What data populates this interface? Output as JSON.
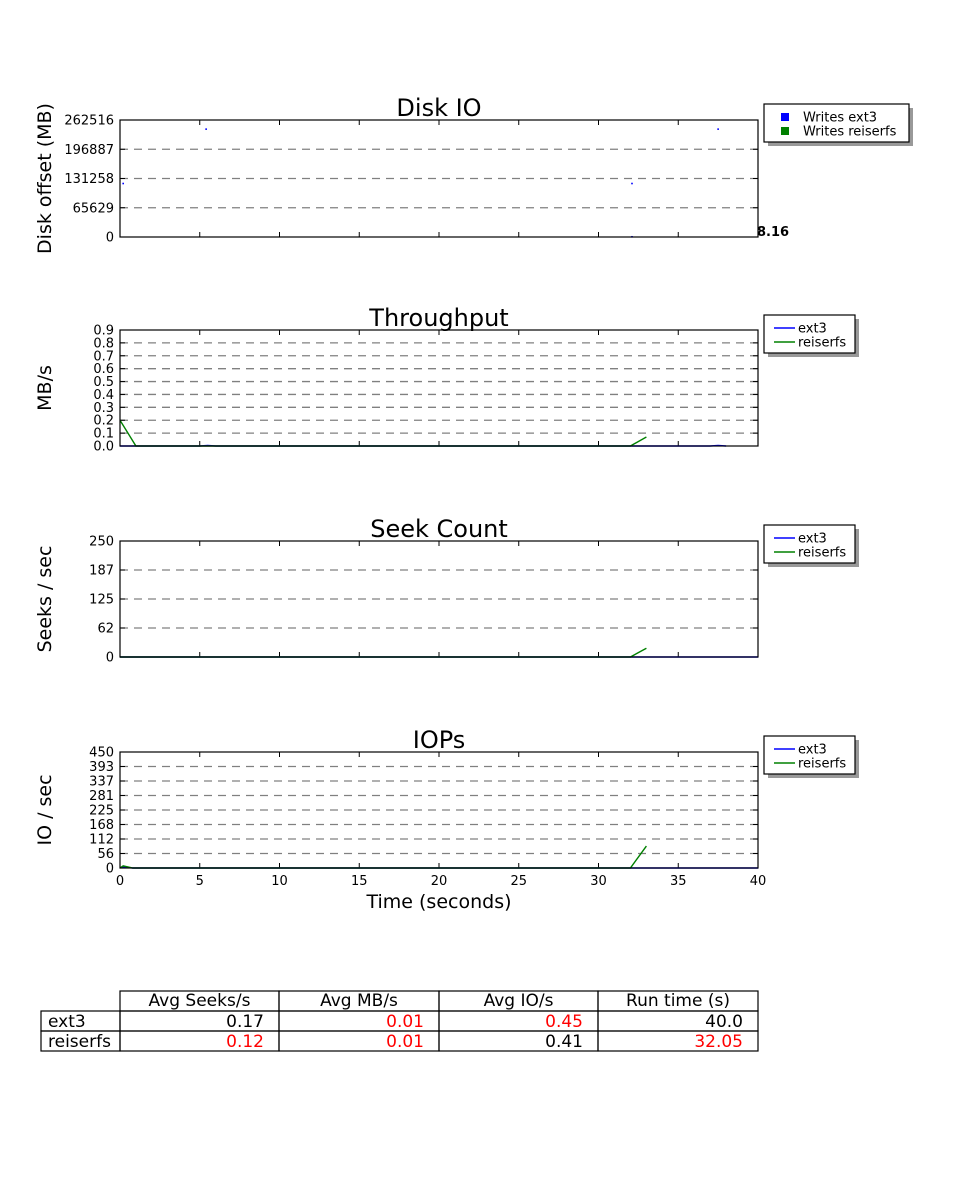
{
  "chart_data": [
    {
      "type": "scatter",
      "title": "Disk IO",
      "ylabel": "Disk offset (MB)",
      "xlabel": "",
      "xlim": [
        0,
        40
      ],
      "ylim": [
        0,
        262516
      ],
      "yticks": [
        "0",
        "65629",
        "131258",
        "196887",
        "262516"
      ],
      "grid": "horizontal dashed",
      "legend": "right of plot, top",
      "annotation": "8.16",
      "series": [
        {
          "name": "Writes ext3",
          "color": "#0000ff",
          "points": [
            [
              0.2,
              120000
            ],
            [
              5.4,
              242000
            ],
            [
              32.1,
              120000
            ],
            [
              37.5,
              242000
            ],
            [
              32.1,
              500
            ]
          ]
        },
        {
          "name": "Writes reiserfs",
          "color": "#008000",
          "points": []
        }
      ]
    },
    {
      "type": "line",
      "title": "Throughput",
      "ylabel": "MB/s",
      "xlabel": "",
      "xlim": [
        0,
        40
      ],
      "ylim": [
        0,
        0.9
      ],
      "yticks": [
        "0.0",
        "0.1",
        "0.2",
        "0.3",
        "0.4",
        "0.5",
        "0.6",
        "0.7",
        "0.8",
        "0.9"
      ],
      "grid": "horizontal dashed",
      "legend": "right of plot, top",
      "series": [
        {
          "name": "ext3",
          "color": "#0000ff",
          "x": [
            0,
            5,
            5.5,
            6,
            37,
            37.5,
            38
          ],
          "y": [
            0,
            0,
            0.005,
            0,
            0,
            0.005,
            0
          ]
        },
        {
          "name": "reiserfs",
          "color": "#008000",
          "x": [
            0,
            1,
            32,
            33
          ],
          "y": [
            0.2,
            0,
            0,
            0.07
          ]
        }
      ]
    },
    {
      "type": "line",
      "title": "Seek Count",
      "ylabel": "Seeks / sec",
      "xlabel": "",
      "xlim": [
        0,
        40
      ],
      "ylim": [
        0,
        250
      ],
      "yticks": [
        "0",
        "62",
        "125",
        "187",
        "250"
      ],
      "grid": "horizontal dashed",
      "legend": "right of plot, top",
      "series": [
        {
          "name": "ext3",
          "color": "#0000ff",
          "x": [
            0,
            40
          ],
          "y": [
            0,
            0
          ]
        },
        {
          "name": "reiserfs",
          "color": "#008000",
          "x": [
            0,
            32,
            33
          ],
          "y": [
            0,
            0,
            19
          ]
        }
      ]
    },
    {
      "type": "line",
      "title": "IOPs",
      "ylabel": "IO / sec",
      "xlabel": "Time (seconds)",
      "xlim": [
        0,
        40
      ],
      "ylim": [
        0,
        450
      ],
      "yticks": [
        "0",
        "56",
        "112",
        "168",
        "225",
        "281",
        "337",
        "393",
        "450"
      ],
      "xticks": [
        "0",
        "5",
        "10",
        "15",
        "20",
        "25",
        "30",
        "35",
        "40"
      ],
      "grid": "horizontal dashed",
      "legend": "right of plot, top",
      "series": [
        {
          "name": "ext3",
          "color": "#0000ff",
          "x": [
            0,
            0.2,
            0.8,
            40
          ],
          "y": [
            0,
            4,
            0,
            0
          ]
        },
        {
          "name": "reiserfs",
          "color": "#008000",
          "x": [
            0,
            0.2,
            0.8,
            32,
            33
          ],
          "y": [
            0,
            8,
            0,
            0,
            85
          ]
        }
      ]
    },
    {
      "type": "table",
      "columns": [
        "Avg Seeks/s",
        "Avg MB/s",
        "Avg IO/s",
        "Run time (s)"
      ],
      "rows": [
        {
          "label": "ext3",
          "values": [
            "0.17",
            "0.01",
            "0.45",
            "40.0"
          ],
          "highlight": [
            false,
            true,
            true,
            false
          ]
        },
        {
          "label": "reiserfs",
          "values": [
            "0.12",
            "0.01",
            "0.41",
            "32.05"
          ],
          "highlight": [
            true,
            true,
            false,
            true
          ]
        }
      ],
      "highlight_color": "#ff0000"
    }
  ]
}
